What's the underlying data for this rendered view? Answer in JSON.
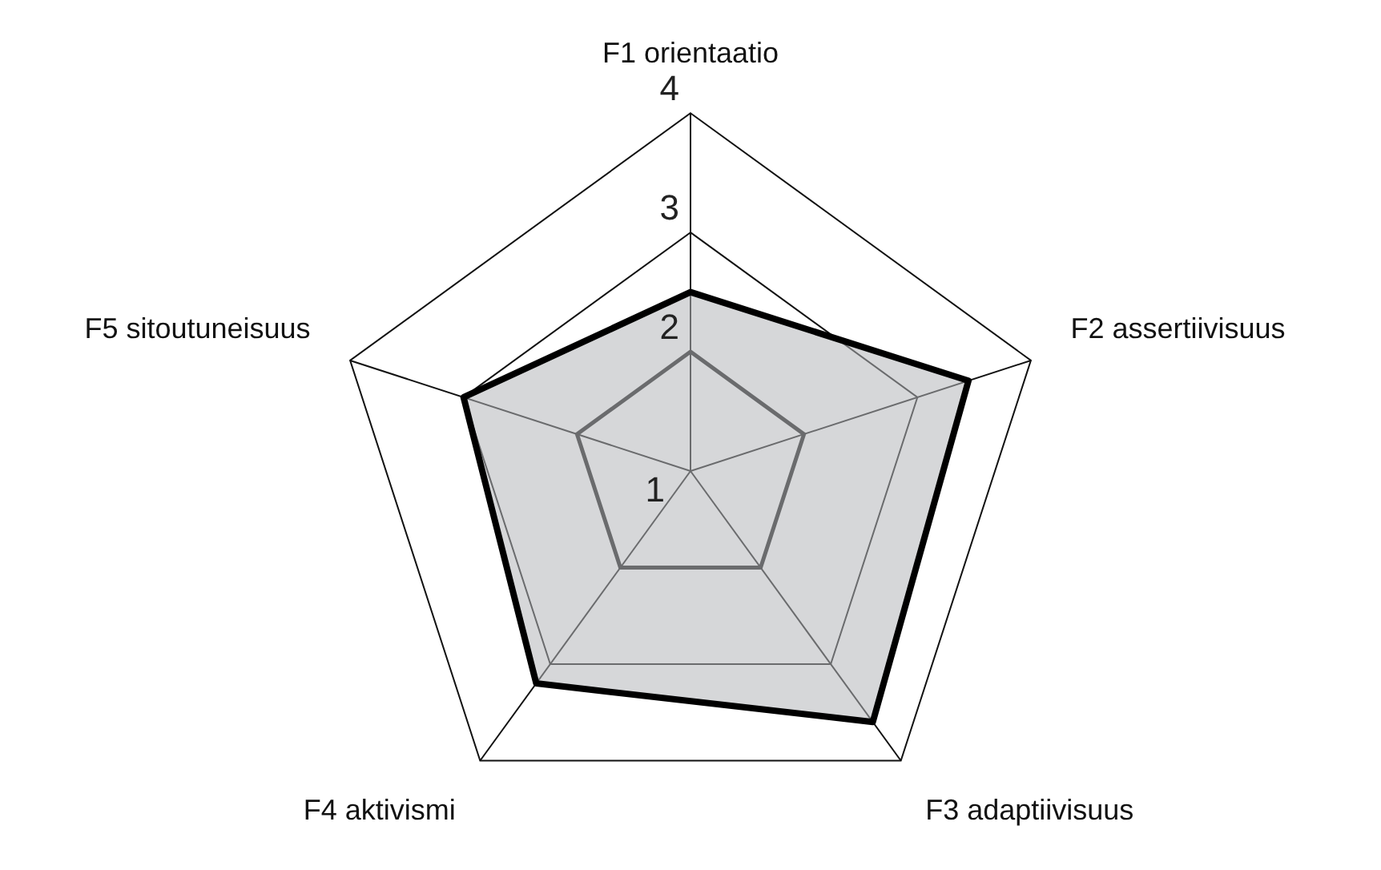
{
  "chart_data": {
    "type": "radar",
    "categories": [
      "F1 orientaatio",
      "F2 assertiivisuus",
      "F3 adaptiivisuus",
      "F4 aktivismi",
      "F5 sitoutuneisuus"
    ],
    "series": [
      {
        "color": "#000000",
        "values": [
          2.5,
          3.45,
          3.6,
          3.2,
          3.0
        ]
      }
    ],
    "ylim": [
      1,
      4
    ],
    "yticks": [
      1,
      2,
      3,
      4
    ],
    "grid": true,
    "legend": false
  }
}
